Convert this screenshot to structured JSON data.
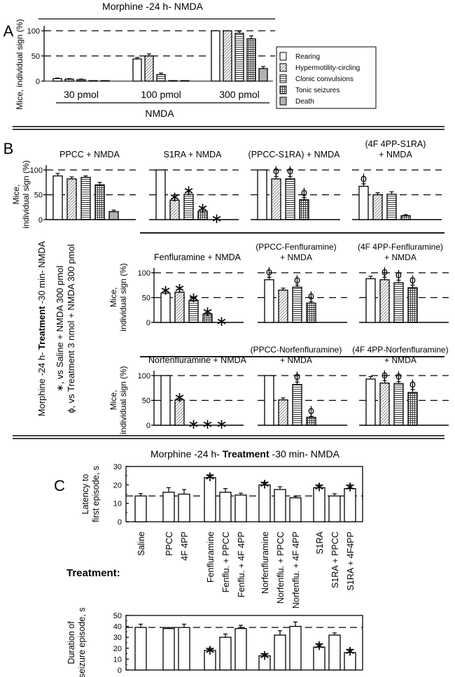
{
  "chart_data": {
    "type": "bar",
    "panel_a": {
      "letter": "A",
      "title": "Morphine -24 h- NMDA",
      "ylabel": "Mice, individual sign (%)",
      "yticks": [
        "100",
        "50",
        "0"
      ],
      "ylim": [
        0,
        100
      ],
      "reference_lines": [
        50,
        100
      ],
      "xlabel": "NMDA",
      "legend": [
        "Rearing",
        "Hypermotility-circling",
        "Clonic convulsions",
        "Tonic seizures",
        "Death"
      ],
      "groups": [
        {
          "label": "30 pmol",
          "values": [
            5,
            4,
            3,
            1,
            1
          ],
          "errors": [
            1,
            1,
            1,
            0,
            0
          ]
        },
        {
          "label": "100 pmol",
          "values": [
            44,
            50,
            13,
            1,
            1
          ],
          "errors": [
            3,
            4,
            3,
            0,
            0
          ]
        },
        {
          "label": "300 pmol",
          "values": [
            100,
            100,
            95,
            84,
            25
          ],
          "errors": [
            0,
            0,
            4,
            6,
            4
          ]
        }
      ]
    },
    "panel_b": {
      "letter": "B",
      "ylabel_lines": [
        "Mice,",
        "individual sign (%)"
      ],
      "yticks": [
        "100",
        "50",
        "0"
      ],
      "ylim": [
        0,
        100
      ],
      "side_notes": [
        [
          "Morphine -24 h- ",
          "Treatment",
          " -30 min- NMDA"
        ],
        [
          "∗, vs Saline + NMDA 300 pmol"
        ],
        [
          "ϕ, vs Treatment 3 nmol + NMDA 300 pmol"
        ]
      ],
      "rows": [
        [
          {
            "title_lines": [
              "PPCC + NMDA"
            ],
            "values": [
              88,
              82,
              85,
              70,
              16
            ],
            "errors": [
              5,
              4,
              3,
              5,
              3
            ],
            "marks": [
              "",
              "",
              "",
              "",
              ""
            ]
          },
          {
            "title_lines": [
              "S1RA + NMDA"
            ],
            "values": [
              100,
              39,
              51,
              17,
              0
            ],
            "errors": [
              0,
              5,
              5,
              4,
              0
            ],
            "marks": [
              "",
              "∗",
              "∗",
              "∗",
              "∗"
            ]
          },
          {
            "title_lines": [
              "(PPCC-S1RA) + NMDA"
            ],
            "values": [
              100,
              82,
              82,
              40,
              0
            ],
            "errors": [
              0,
              5,
              5,
              4,
              0
            ],
            "marks": [
              "",
              "ϕ",
              "ϕ",
              "ϕ",
              ""
            ]
          },
          {
            "title_lines": [
              "(4F 4PP-S1RA)",
              "+ NMDA"
            ],
            "values": [
              67,
              50,
              51,
              8,
              0
            ],
            "errors": [
              5,
              4,
              5,
              2,
              0
            ],
            "marks": [
              "ϕ",
              "",
              "",
              "",
              ""
            ]
          }
        ],
        [
          {
            "title_lines": [
              "Fenfluramine + NMDA"
            ],
            "values": [
              59,
              61,
              44,
              17,
              0
            ],
            "errors": [
              4,
              6,
              4,
              3,
              0
            ],
            "marks": [
              "∗",
              "∗",
              "∗",
              "∗",
              "∗"
            ]
          },
          {
            "title_lines": [
              "(PPCC-Fenfluramine)",
              "+ NMDA"
            ],
            "values": [
              86,
              65,
              71,
              39
            ],
            "errors": [
              5,
              4,
              4,
              3
            ],
            "marks": [
              "ϕ",
              "",
              "ϕ",
              "ϕ"
            ]
          },
          {
            "title_lines": [
              "(4F 4PP-Fenfluramine)",
              "+ NMDA"
            ],
            "values": [
              88,
              86,
              80,
              70
            ],
            "errors": [
              5,
              5,
              5,
              5
            ],
            "marks": [
              "",
              "ϕ",
              "ϕ",
              "ϕ"
            ]
          }
        ],
        [
          {
            "title_lines": [
              "Norfenfluramine + NMDA"
            ],
            "values": [
              100,
              51,
              0,
              0,
              0
            ],
            "errors": [
              0,
              3,
              0,
              0,
              0
            ],
            "marks": [
              "",
              "∗",
              "∗",
              "∗",
              "∗"
            ]
          },
          {
            "title_lines": [
              "(PPCC-Norfenfluramine)",
              "+ NMDA"
            ],
            "values": [
              100,
              51,
              82,
              16
            ],
            "errors": [
              0,
              4,
              5,
              2
            ],
            "marks": [
              "",
              "",
              "ϕ",
              "ϕ"
            ]
          },
          {
            "title_lines": [
              "(4F 4PP-Norfenfluramine)",
              "+ NMDA"
            ],
            "values": [
              93,
              85,
              84,
              66
            ],
            "errors": [
              5,
              5,
              4,
              6
            ],
            "marks": [
              "",
              "ϕ",
              "ϕ",
              "ϕ"
            ]
          }
        ]
      ]
    },
    "panel_c": {
      "letter": "C",
      "title": [
        "Morphine -24 h- ",
        "Treatment",
        " -30 min- NMDA"
      ],
      "treatment_label": "Treatment:",
      "categories": [
        "Saline",
        "PPCC",
        "4F 4PP",
        "Fenfluramine",
        "Fenflu. + PPCC",
        "Fenflu. + 4F 4PP",
        "Norfenfluramine",
        "Norfenflu. + PPCC",
        "Norfenflu. + 4F 4PP",
        "S1RA",
        "S1RA + PPCC",
        "S1RA + 4F4PP"
      ],
      "latency": {
        "ylabel_lines": [
          "Latency to",
          "first episode, s"
        ],
        "yticks": [
          "0",
          "10",
          "20",
          "30"
        ],
        "ylim": [
          0,
          30
        ],
        "reference": 14,
        "values": [
          14,
          16,
          15,
          24,
          16,
          14.5,
          20,
          17.5,
          13,
          18.5,
          14,
          18
        ],
        "errors": [
          1.3,
          2.5,
          2.5,
          1.5,
          2,
          1,
          1.5,
          1.5,
          0.8,
          1.5,
          1.2,
          2
        ],
        "marks": [
          "",
          "",
          "",
          "∗",
          "",
          "",
          "∗",
          "",
          "",
          "∗",
          "",
          "∗"
        ]
      },
      "duration": {
        "ylabel_lines": [
          "Duration of",
          "seizure episode, s"
        ],
        "yticks": [
          "0",
          "10",
          "20",
          "30",
          "40",
          "50"
        ],
        "ylim": [
          0,
          50
        ],
        "reference": 39,
        "values": [
          39,
          38,
          39,
          18,
          30,
          38,
          13,
          32,
          40,
          21,
          32,
          16
        ],
        "errors": [
          3,
          1,
          3,
          2,
          3,
          3,
          2,
          4,
          4,
          3,
          2,
          3
        ],
        "marks": [
          "",
          "",
          "",
          "∗",
          "",
          "",
          "∗",
          "",
          "",
          "∗",
          "",
          "∗"
        ]
      }
    }
  }
}
